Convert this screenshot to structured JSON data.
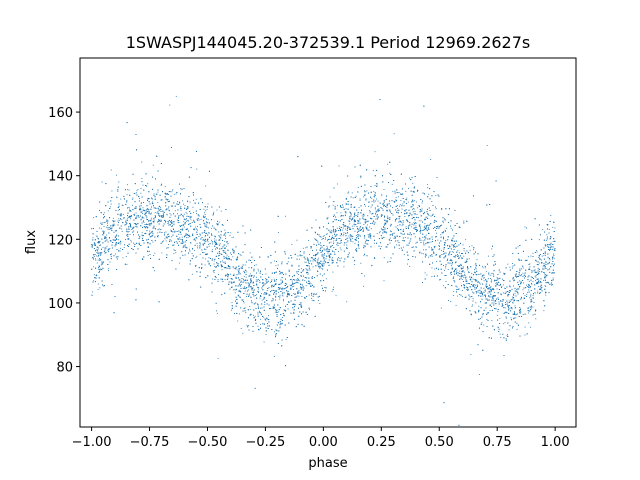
{
  "chart_data": {
    "type": "scatter",
    "title": "1SWASPJ144045.20-372539.1 Period 12969.2627s",
    "xlabel": "phase",
    "ylabel": "flux",
    "xlim": [
      -1.05,
      1.09
    ],
    "ylim": [
      61,
      177
    ],
    "xticks": [
      -1.0,
      -0.75,
      -0.5,
      -0.25,
      0.0,
      0.25,
      0.5,
      0.75,
      1.0
    ],
    "xtick_labels": [
      "−1.00",
      "−0.75",
      "−0.50",
      "−0.25",
      "0.00",
      "0.25",
      "0.50",
      "0.75",
      "1.00"
    ],
    "yticks": [
      80,
      100,
      120,
      140,
      160
    ],
    "ytick_labels": [
      "80",
      "100",
      "120",
      "140",
      "160"
    ],
    "grid": false,
    "marker_color": "#1f77b4",
    "series": [
      {
        "x": [
          -1.0,
          -0.95,
          -0.9,
          -0.85,
          -0.8,
          -0.75,
          -0.7,
          -0.65,
          -0.6,
          -0.55,
          -0.5,
          -0.45,
          -0.4,
          -0.35,
          -0.3,
          -0.25,
          -0.2,
          -0.15,
          -0.1,
          -0.05,
          0.0,
          0.05,
          0.1,
          0.15,
          0.2,
          0.25,
          0.3,
          0.35,
          0.4,
          0.45,
          0.5,
          0.55,
          0.6,
          0.65,
          0.7,
          0.75,
          0.8,
          0.85,
          0.9,
          0.95,
          1.0
        ],
        "y": [
          114,
          119,
          122,
          125,
          126,
          127,
          127,
          126,
          125,
          123,
          120,
          116,
          111,
          106,
          103,
          102,
          102,
          103,
          105,
          111,
          116,
          120,
          123,
          125,
          126,
          127,
          127,
          126,
          125,
          123,
          120,
          116,
          111,
          106,
          103,
          102,
          102,
          103,
          105,
          111,
          116
        ],
        "scatter_y": 6
      }
    ]
  }
}
